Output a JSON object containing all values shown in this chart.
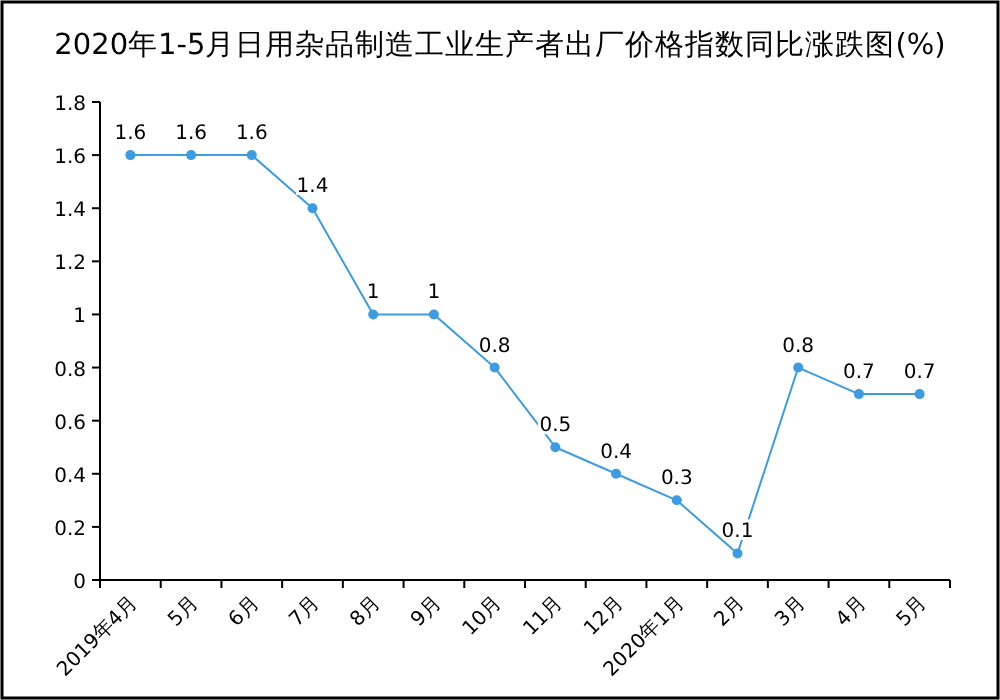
{
  "chart_data": {
    "type": "line",
    "title": "2020年1-5月日用杂品制造工业生产者出厂价格指数同比涨跌图(%)",
    "categories": [
      "2019年4月",
      "5月",
      "6月",
      "7月",
      "8月",
      "9月",
      "10月",
      "11月",
      "12月",
      "2020年1月",
      "2月",
      "3月",
      "4月",
      "5月"
    ],
    "series": [
      {
        "color": "#3d9be0",
        "values": [
          1.6,
          1.6,
          1.6,
          1.4,
          1,
          1,
          0.8,
          0.5,
          0.4,
          0.3,
          0.1,
          0.8,
          0.7,
          0.7
        ]
      }
    ],
    "ylim": [
      0,
      1.8
    ],
    "yticks": [
      0,
      0.2,
      0.4,
      0.6,
      0.8,
      1,
      1.2,
      1.4,
      1.6,
      1.8
    ],
    "data_labels": true,
    "marker": "circle",
    "grid": false
  }
}
